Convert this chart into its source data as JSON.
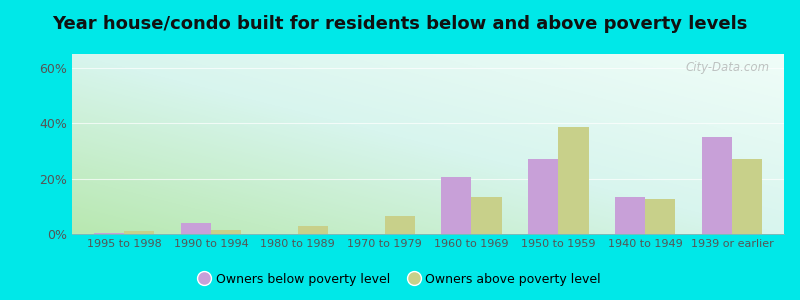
{
  "title": "Year house/condo built for residents below and above poverty levels",
  "categories": [
    "1995 to 1998",
    "1990 to 1994",
    "1980 to 1989",
    "1970 to 1979",
    "1960 to 1969",
    "1950 to 1959",
    "1940 to 1949",
    "1939 or earlier"
  ],
  "below_poverty": [
    0.5,
    4.0,
    0.0,
    0.0,
    20.5,
    27.0,
    13.5,
    35.0
  ],
  "above_poverty": [
    1.0,
    1.5,
    3.0,
    6.5,
    13.5,
    38.5,
    12.5,
    27.0
  ],
  "below_color": "#c8a0d8",
  "above_color": "#c8d08a",
  "bg_grad_colors": [
    "#d4f0d4",
    "#e8f8f5",
    "#f5fffe"
  ],
  "ylim": [
    0,
    65
  ],
  "yticks": [
    0,
    20,
    40,
    60
  ],
  "ytick_labels": [
    "0%",
    "20%",
    "40%",
    "60%"
  ],
  "bar_width": 0.35,
  "legend_below": "Owners below poverty level",
  "legend_above": "Owners above poverty level",
  "watermark": "City-Data.com",
  "outer_bg": "#00e8e8",
  "title_fontsize": 13,
  "tick_fontsize": 8,
  "legend_fontsize": 9
}
